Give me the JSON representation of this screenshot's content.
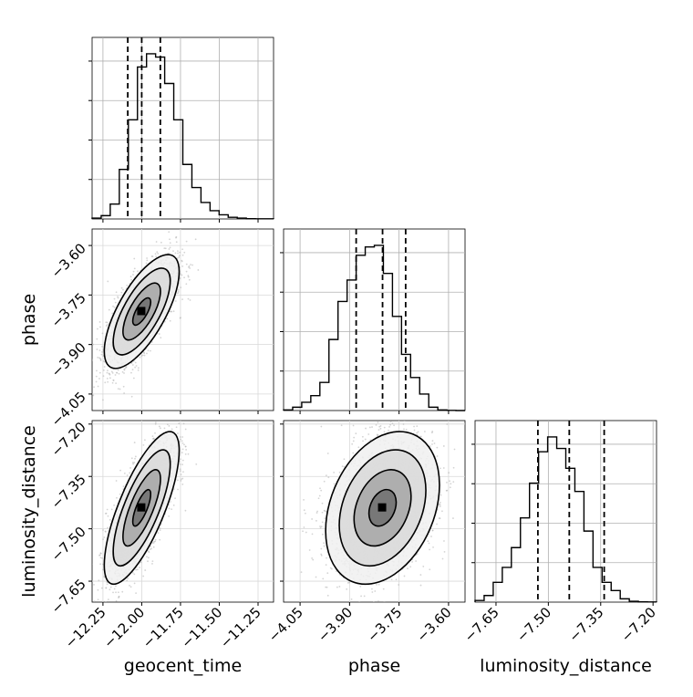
{
  "chart_data": {
    "type": "corner",
    "parameters": [
      "geocent_time",
      "phase",
      "luminosity_distance"
    ],
    "axis_labels": {
      "geocent_time": "geocent_time",
      "phase": "phase",
      "luminosity_distance": "luminosity_distance"
    },
    "ranges": {
      "geocent_time": [
        -12.32,
        -11.15
      ],
      "phase": [
        -4.1,
        -3.55
      ],
      "luminosity_distance": [
        -7.71,
        -7.19
      ]
    },
    "ticks": {
      "geocent_time": {
        "values": [
          -12.25,
          -12.0,
          -11.75,
          -11.5,
          -11.25
        ],
        "labels": [
          "−12.25",
          "−12.00",
          "−11.75",
          "−11.50",
          "−11.25"
        ]
      },
      "phase": {
        "values": [
          -4.05,
          -3.9,
          -3.75,
          -3.6
        ],
        "labels": [
          "−4.05",
          "−3.90",
          "−3.75",
          "−3.60"
        ]
      },
      "luminosity_distance": {
        "values": [
          -7.65,
          -7.5,
          -7.35,
          -7.2
        ],
        "labels": [
          "−7.65",
          "−7.50",
          "−7.35",
          "−7.20"
        ]
      }
    },
    "quantiles": {
      "geocent_time": [
        -12.09,
        -12.0,
        -11.88
      ],
      "phase": [
        -3.88,
        -3.8,
        -3.73
      ],
      "luminosity_distance": [
        -7.53,
        -7.44,
        -7.34
      ]
    },
    "histograms": {
      "geocent_time": [
        0.005,
        0.02,
        0.09,
        0.3,
        0.6,
        0.92,
        1.0,
        0.98,
        0.82,
        0.6,
        0.33,
        0.19,
        0.1,
        0.05,
        0.025,
        0.01,
        0.005,
        0.002,
        0.001,
        0.001
      ],
      "phase": [
        0.004,
        0.02,
        0.05,
        0.09,
        0.17,
        0.43,
        0.66,
        0.79,
        0.94,
        0.99,
        1.0,
        0.83,
        0.57,
        0.34,
        0.2,
        0.1,
        0.02,
        0.004,
        0.001,
        0.0
      ],
      "luminosity_distance": [
        0.01,
        0.04,
        0.12,
        0.21,
        0.33,
        0.51,
        0.72,
        0.91,
        1.0,
        0.93,
        0.81,
        0.67,
        0.43,
        0.21,
        0.12,
        0.07,
        0.02,
        0.005,
        0.002,
        0.001
      ]
    },
    "correlations": {
      "phase|geocent_time": 0.7,
      "luminosity_distance|geocent_time": 0.75,
      "luminosity_distance|phase": 0.3
    },
    "scatter_color": "#b0b0b0",
    "contour_color": "#000000",
    "grid": true
  }
}
